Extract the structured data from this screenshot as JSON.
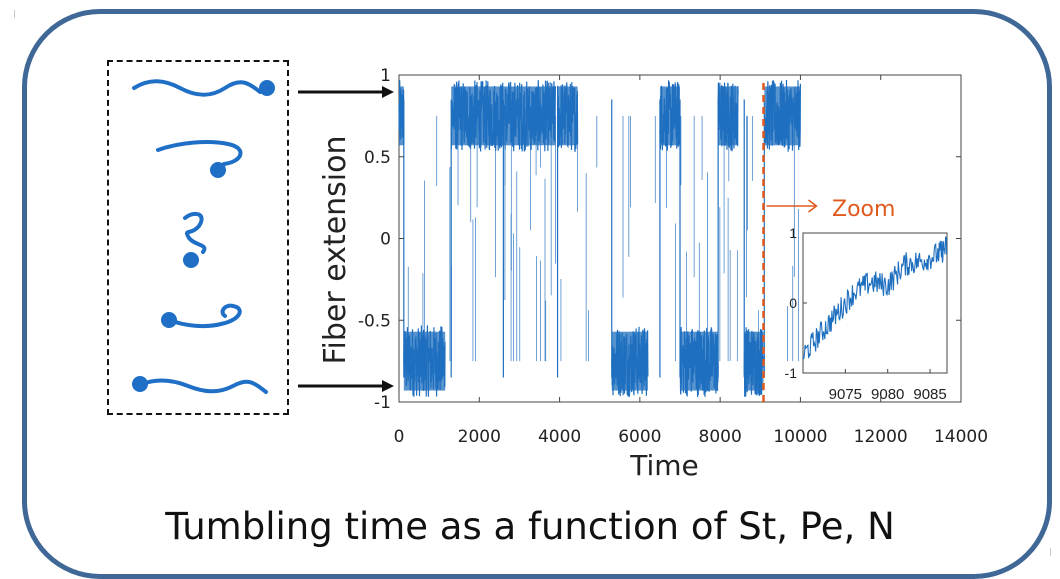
{
  "caption": "Tumbling time as a function of St, Pe, N",
  "zoom_label": "Zoom",
  "colors": {
    "frame": "#3f6896",
    "series": "#1f6fbf",
    "fiber": "#1f6fc6",
    "zoom_marker": "#e05a1e"
  },
  "fiber_icons": [
    "extended-fiber-icon",
    "hooked-fiber-icon",
    "coiled-fiber-icon",
    "hooked-fiber-icon",
    "extended-fiber-icon"
  ],
  "chart_data": [
    {
      "type": "line",
      "xlabel": "Time",
      "ylabel": "Fiber extension",
      "xlim": [
        0,
        14000
      ],
      "ylim": [
        -1,
        1
      ],
      "xticks": [
        0,
        2000,
        4000,
        6000,
        8000,
        10000,
        12000,
        14000
      ],
      "yticks": [
        -1,
        -0.5,
        0,
        0.5,
        1
      ],
      "series": [
        {
          "description_of_levels": "telegraph signal switching between states near +0.75 and -0.75",
          "segments": [
            {
              "x": [
                0,
                120
              ],
              "level": 0.75
            },
            {
              "x": [
                120,
                1150
              ],
              "level": -0.75
            },
            {
              "x": [
                1300,
                2600
              ],
              "level": 0.75
            },
            {
              "x": [
                2600,
                3900
              ],
              "level": 0.75
            },
            {
              "x": [
                3950,
                4450
              ],
              "level": 0.75
            },
            {
              "x": [
                5300,
                6200
              ],
              "level": -0.75
            },
            {
              "x": [
                6500,
                7000
              ],
              "level": 0.75
            },
            {
              "x": [
                7000,
                7950
              ],
              "level": -0.75
            },
            {
              "x": [
                7950,
                8450
              ],
              "level": 0.75
            },
            {
              "x": [
                8600,
                9080
              ],
              "level": -0.75
            },
            {
              "x": [
                9100,
                10000
              ],
              "level": 0.75
            }
          ]
        }
      ],
      "marker": {
        "x": 9080,
        "label": "Zoom"
      }
    },
    {
      "type": "line",
      "xlim": [
        9070,
        9087
      ],
      "ylim": [
        -1,
        1
      ],
      "xticks": [
        9075,
        9080,
        9085
      ],
      "yticks": [
        -1,
        0,
        1
      ],
      "series": [
        {
          "x": [
            9070,
            9072,
            9074,
            9076,
            9078,
            9080,
            9082,
            9084,
            9086,
            9087
          ],
          "values": [
            -0.75,
            -0.45,
            -0.15,
            0.15,
            0.3,
            0.25,
            0.55,
            0.6,
            0.7,
            0.8
          ]
        }
      ]
    }
  ]
}
